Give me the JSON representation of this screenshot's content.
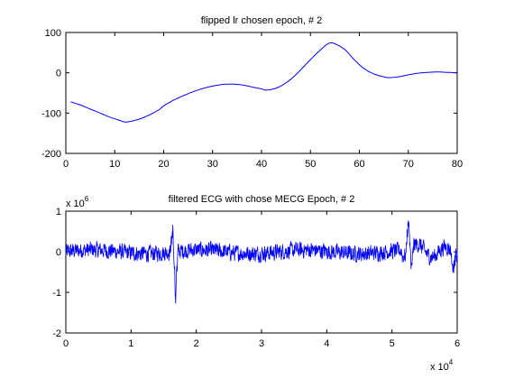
{
  "chart_data": [
    {
      "type": "line",
      "title": "flipped lr chosen epoch, # 2",
      "xlabel": "",
      "ylabel": "",
      "xlim": [
        0,
        80
      ],
      "ylim": [
        -200,
        100
      ],
      "xticks": [
        0,
        10,
        20,
        30,
        40,
        50,
        60,
        70,
        80
      ],
      "yticks": [
        -200,
        -100,
        0,
        100
      ],
      "grid": false,
      "color": "#0000ff",
      "x": [
        1,
        3,
        5,
        7,
        9,
        11,
        12,
        13,
        15,
        17,
        19,
        20,
        22,
        24,
        26,
        28,
        30,
        32,
        34,
        36,
        38,
        40,
        41,
        43,
        45,
        47,
        49,
        51,
        53,
        54,
        55,
        57,
        59,
        61,
        63,
        65,
        66,
        68,
        70,
        72,
        74,
        76,
        78,
        80
      ],
      "y": [
        -72,
        -80,
        -90,
        -100,
        -110,
        -118,
        -122,
        -121,
        -115,
        -105,
        -92,
        -82,
        -68,
        -57,
        -47,
        -39,
        -33,
        -29,
        -28,
        -30,
        -35,
        -40,
        -43,
        -38,
        -25,
        -5,
        20,
        45,
        67,
        74,
        72,
        58,
        32,
        10,
        -3,
        -10,
        -12,
        -10,
        -5,
        -1,
        1,
        2,
        1,
        0
      ]
    },
    {
      "type": "line",
      "title": "filtered ECG with chose MECG Epoch, # 2",
      "xlabel": "",
      "ylabel": "",
      "xlim": [
        0,
        60000
      ],
      "ylim": [
        -2000000,
        1000000
      ],
      "xticks": [
        0,
        10000,
        20000,
        30000,
        40000,
        50000,
        60000
      ],
      "xtick_labels": [
        "0",
        "1",
        "2",
        "3",
        "4",
        "5",
        "6"
      ],
      "yticks": [
        -2000000,
        -1000000,
        0,
        1000000
      ],
      "ytick_labels": [
        "-2",
        "-1",
        "0",
        "1"
      ],
      "x_multiplier": {
        "base": "x 10",
        "exp": "4"
      },
      "y_multiplier": {
        "base": "x 10",
        "exp": "6"
      },
      "grid": false,
      "color": "#0000ff",
      "noise_amplitude": 180000,
      "events": [
        {
          "x": 16400,
          "y": 600000
        },
        {
          "x": 16800,
          "y": -1300000
        },
        {
          "x": 52500,
          "y": 950000
        },
        {
          "x": 53000,
          "y": -500000
        },
        {
          "x": 59400,
          "y": -400000
        }
      ]
    }
  ]
}
